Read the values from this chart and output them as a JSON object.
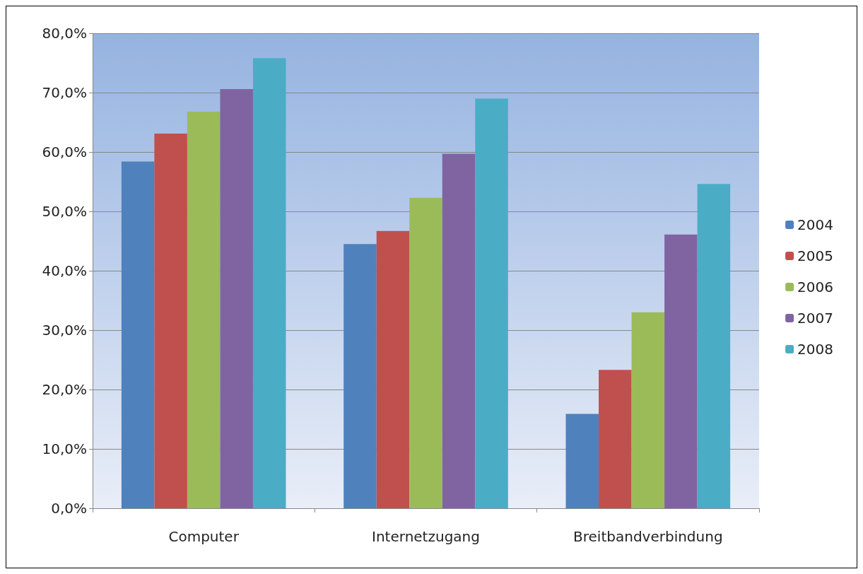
{
  "chart_data": {
    "type": "bar",
    "categories": [
      "Computer",
      "Internetzugang",
      "Breitbandverbindung"
    ],
    "series": [
      {
        "name": "2004",
        "color": "#4f81bd",
        "values": [
          58.4,
          44.5,
          15.9
        ]
      },
      {
        "name": "2005",
        "color": "#c0504d",
        "values": [
          63.1,
          46.7,
          23.3
        ]
      },
      {
        "name": "2006",
        "color": "#9bbb59",
        "values": [
          66.8,
          52.3,
          33.0
        ]
      },
      {
        "name": "2007",
        "color": "#8064a2",
        "values": [
          70.6,
          59.7,
          46.1
        ]
      },
      {
        "name": "2008",
        "color": "#4bacc6",
        "values": [
          75.8,
          69.0,
          54.6
        ]
      }
    ],
    "ylim": [
      0,
      80
    ],
    "yticks": [
      {
        "value": 0,
        "label": "0,0%"
      },
      {
        "value": 10,
        "label": "10,0%"
      },
      {
        "value": 20,
        "label": "20,0%"
      },
      {
        "value": 30,
        "label": "30,0%"
      },
      {
        "value": 40,
        "label": "40,0%"
      },
      {
        "value": 50,
        "label": "50,0%"
      },
      {
        "value": 60,
        "label": "60,0%"
      },
      {
        "value": 70,
        "label": "70,0%"
      },
      {
        "value": 80,
        "label": "80,0%"
      }
    ],
    "grid": "y",
    "legend": "right"
  }
}
